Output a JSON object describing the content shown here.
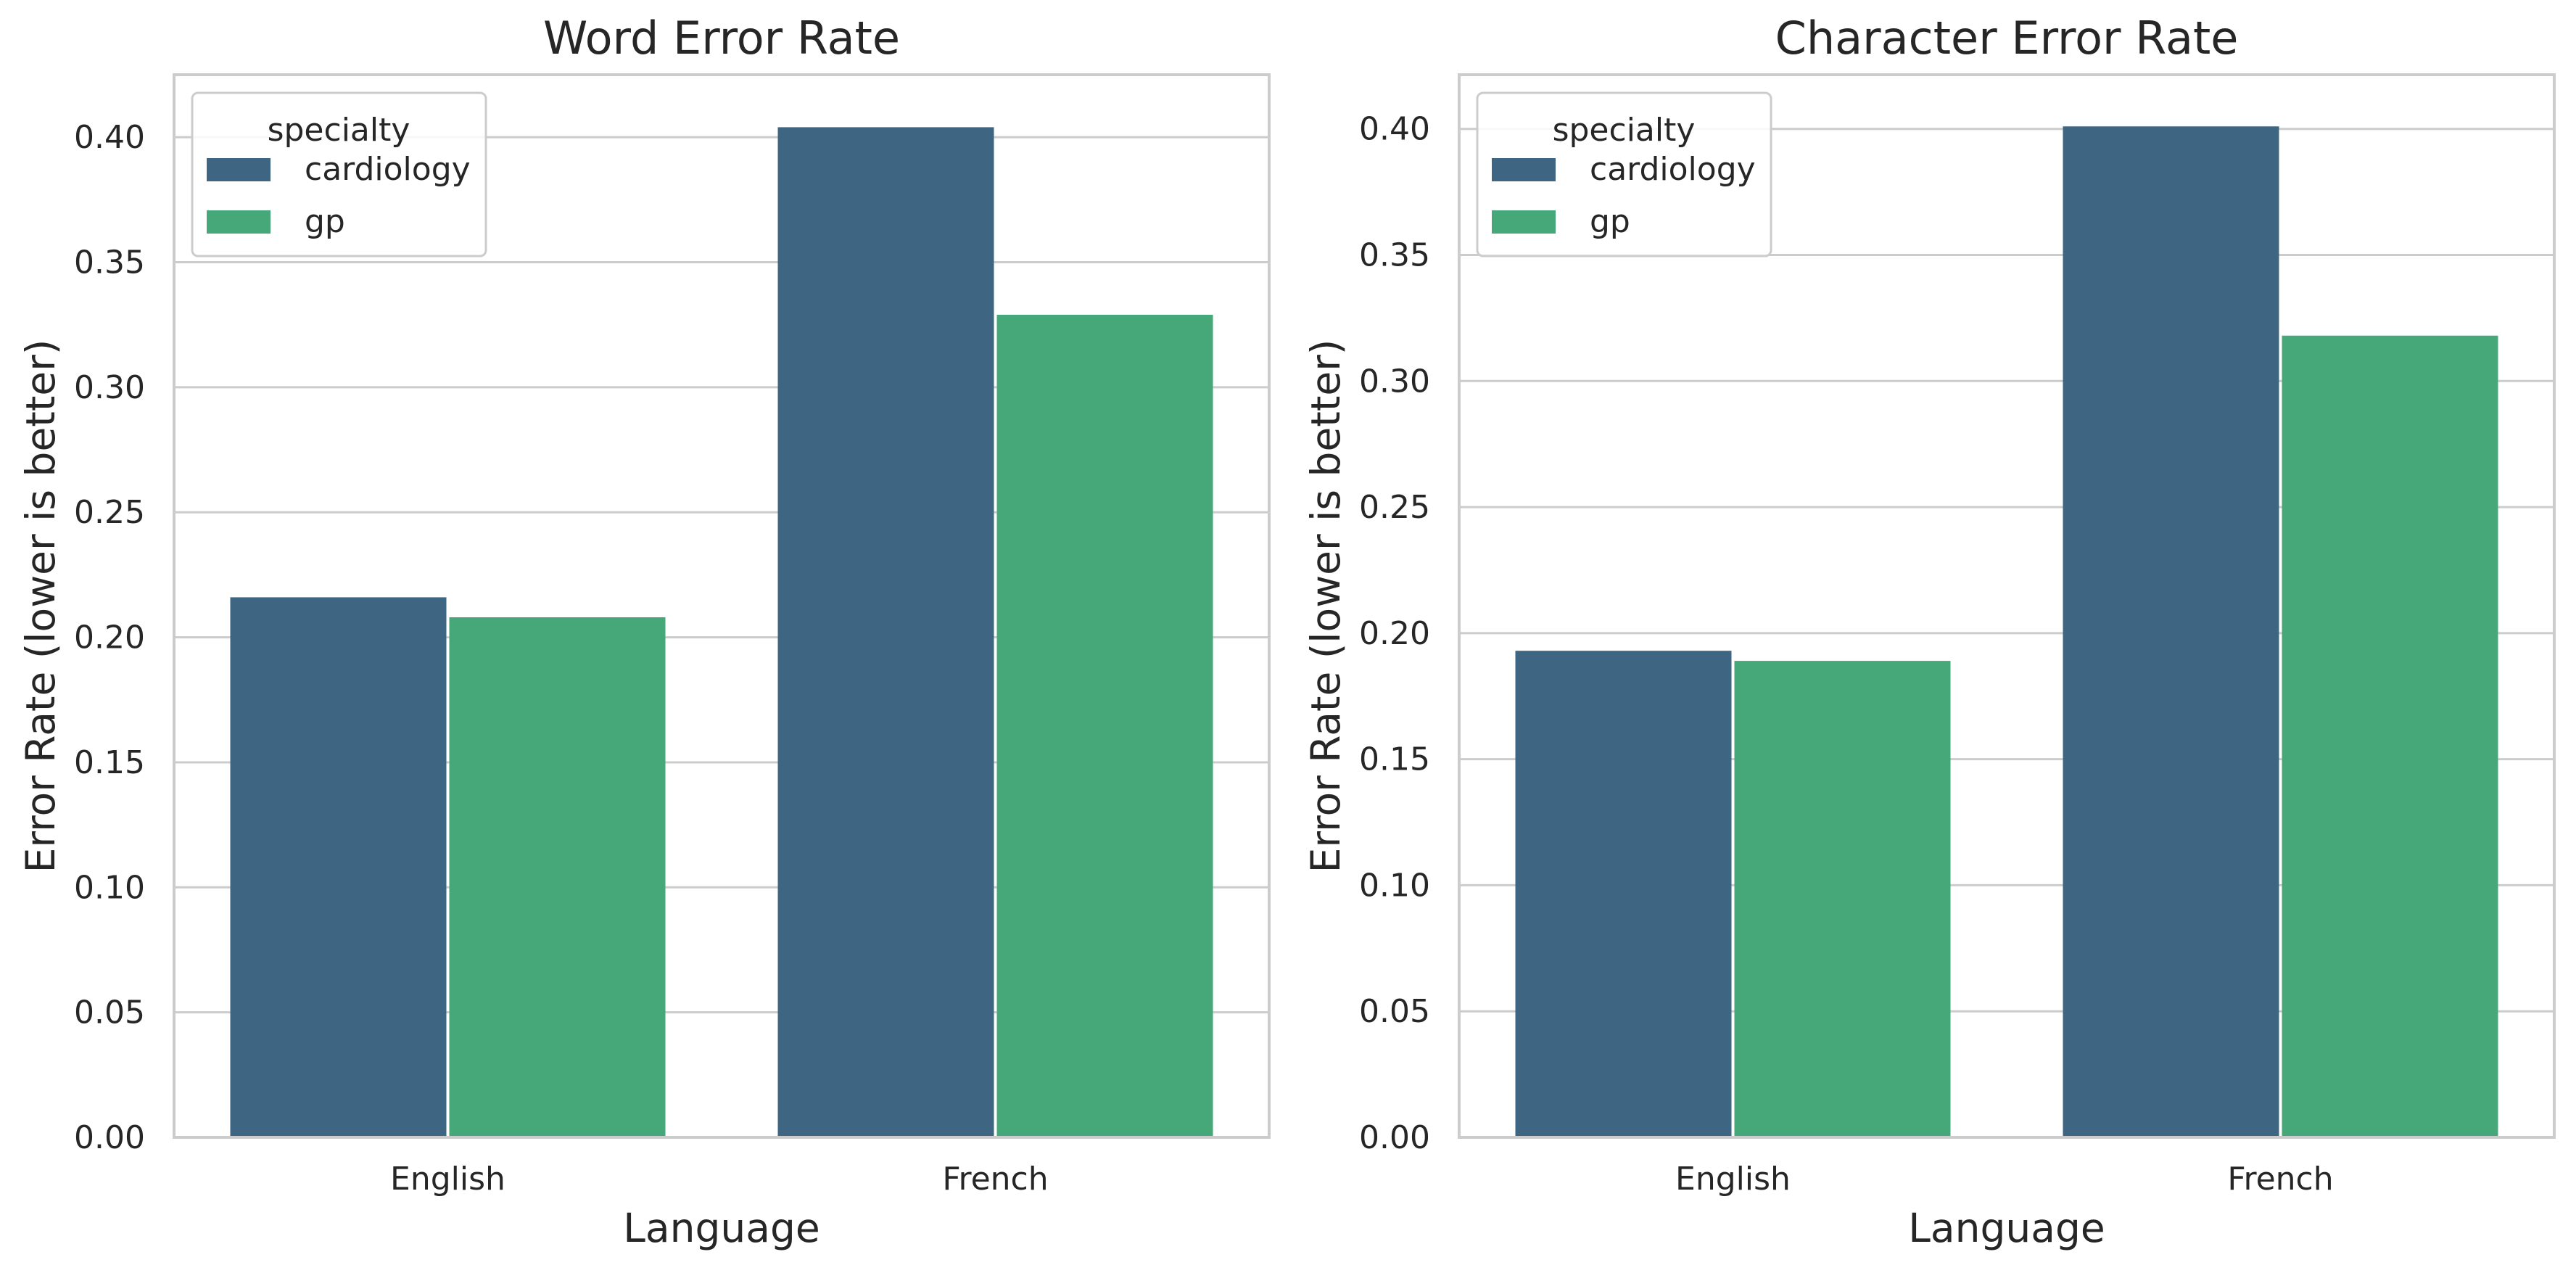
{
  "colors": {
    "cardiology": "#3e6682",
    "gp": "#46a878",
    "grid": "#cccccc",
    "frame": "#cccccc",
    "text": "#262626"
  },
  "chart_data": [
    {
      "type": "bar",
      "title": "Word Error Rate",
      "xlabel": "Language",
      "ylabel": "Error Rate (lower is better)",
      "categories": [
        "English",
        "French"
      ],
      "series": [
        {
          "name": "cardiology",
          "values": [
            0.216,
            0.404
          ]
        },
        {
          "name": "gp",
          "values": [
            0.208,
            0.329
          ]
        }
      ],
      "ylim": [
        0,
        0.425
      ],
      "yticks": [
        "0.00",
        "0.05",
        "0.10",
        "0.15",
        "0.20",
        "0.25",
        "0.30",
        "0.35",
        "0.40"
      ],
      "grid": "horizontal",
      "legend": {
        "title": "specialty",
        "placement": "top-left"
      }
    },
    {
      "type": "bar",
      "title": "Character Error Rate",
      "xlabel": "Language",
      "ylabel": "Error Rate (lower is better)",
      "categories": [
        "English",
        "French"
      ],
      "series": [
        {
          "name": "cardiology",
          "values": [
            0.193,
            0.401
          ]
        },
        {
          "name": "gp",
          "values": [
            0.189,
            0.318
          ]
        }
      ],
      "ylim": [
        0,
        0.4215
      ],
      "yticks": [
        "0.00",
        "0.05",
        "0.10",
        "0.15",
        "0.20",
        "0.25",
        "0.30",
        "0.35",
        "0.40"
      ],
      "grid": "horizontal",
      "legend": {
        "title": "specialty",
        "placement": "top-left"
      }
    }
  ]
}
